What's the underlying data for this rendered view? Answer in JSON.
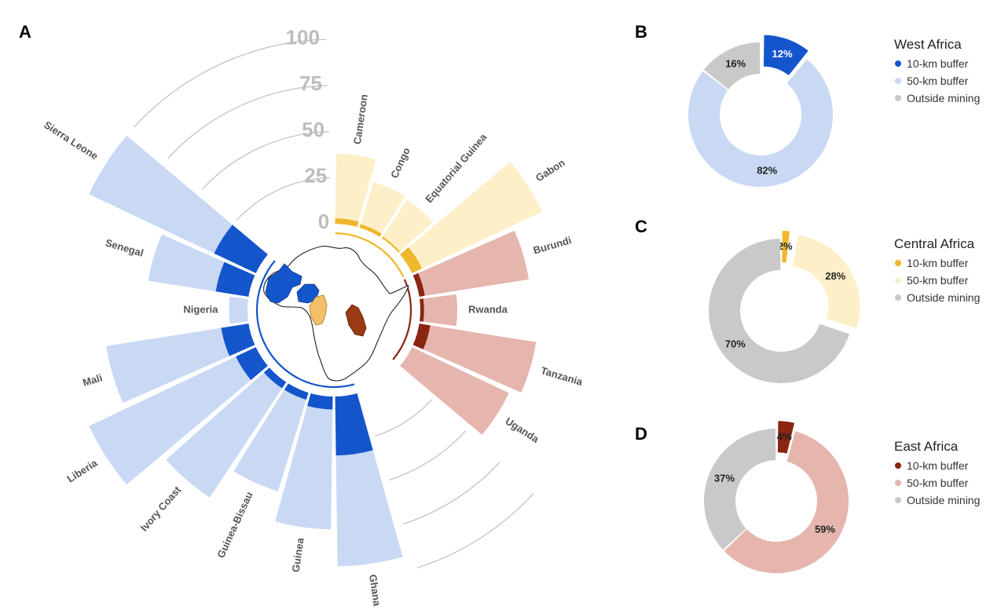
{
  "colors": {
    "west_dark": "#1455cc",
    "west_light": "#c9d9f4",
    "central_dark": "#f0b72c",
    "central_light": "#fdefc8",
    "east_dark": "#8a2510",
    "east_light": "#e5b5ae",
    "outside": "#c9c9c9",
    "grid": "#bfbfbf",
    "map_outline": "#222222"
  },
  "panel_letters": {
    "a": "A",
    "b": "B",
    "c": "C",
    "d": "D"
  },
  "chart_data": [
    {
      "panel": "A",
      "type": "bar",
      "layout": "circular",
      "radial_ticks": [
        "0",
        "25",
        "50",
        "75",
        "100"
      ],
      "ylim": [
        0,
        100
      ],
      "categories": [
        "Cameroon",
        "Congo",
        "Equatorial Guinea",
        "Gabon",
        "Burundi",
        "Rwanda",
        "Tanzania",
        "Uganda",
        "",
        "",
        "Ghana",
        "Guinea",
        "Guinea-Bissau",
        "Ivory Coast",
        "Liberia",
        "Mali",
        "Nigeria",
        "Senegal",
        "Sierra Leone",
        "",
        "",
        ""
      ],
      "region": [
        "central",
        "central",
        "central",
        "central",
        "east",
        "east",
        "east",
        "east",
        "empty",
        "empty",
        "west",
        "west",
        "west",
        "west",
        "west",
        "west",
        "west",
        "west",
        "west",
        "empty",
        "empty",
        "empty"
      ],
      "series": [
        {
          "name": "10-km buffer",
          "values": [
            3,
            2,
            1,
            6,
            3,
            2,
            6,
            0,
            0,
            0,
            32,
            7,
            4,
            4,
            12,
            15,
            0,
            18,
            25,
            0,
            0,
            0
          ]
        },
        {
          "name": "50-km buffer",
          "values": [
            38,
            26,
            25,
            78,
            60,
            20,
            64,
            58,
            0,
            0,
            92,
            72,
            56,
            75,
            100,
            78,
            10,
            55,
            100,
            0,
            0,
            0
          ]
        }
      ]
    },
    {
      "panel": "B",
      "type": "pie",
      "title": "West Africa",
      "labels": [
        "10-km buffer",
        "50-km buffer",
        "Outside mining"
      ],
      "values": [
        12,
        82,
        16
      ],
      "value_labels": [
        "12%",
        "82%",
        "16%"
      ],
      "exploded": [
        true,
        false,
        false
      ]
    },
    {
      "panel": "C",
      "type": "pie",
      "title": "Central Africa",
      "labels": [
        "10-km buffer",
        "50-km buffer",
        "Outside mining"
      ],
      "values": [
        2,
        28,
        70
      ],
      "value_labels": [
        "2%",
        "28%",
        "70%"
      ],
      "exploded": [
        true,
        true,
        false
      ]
    },
    {
      "panel": "D",
      "type": "pie",
      "title": "East Africa",
      "labels": [
        "10-km buffer",
        "50-km buffer",
        "Outside mining"
      ],
      "values": [
        4,
        59,
        37
      ],
      "value_labels": [
        "4%",
        "59%",
        "37%"
      ],
      "exploded": [
        true,
        false,
        false
      ]
    }
  ]
}
